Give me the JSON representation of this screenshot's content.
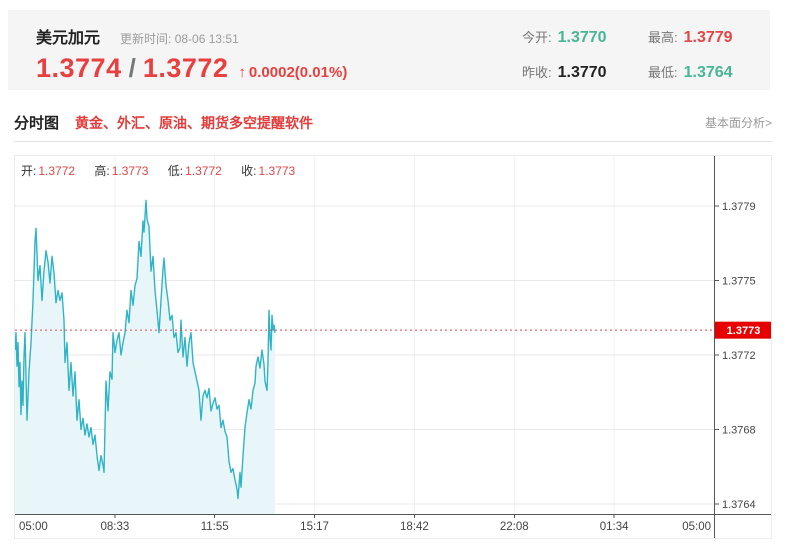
{
  "header": {
    "symbol": "美元加元",
    "update_label": "更新时间:",
    "update_time": "08-06 13:51",
    "bid": "1.3774",
    "separator": "/",
    "ask": "1.3772",
    "arrow": "↑",
    "change": "0.0002(0.01%)",
    "price_color": "#e83f3f",
    "stats": [
      {
        "label": "今开:",
        "value": "1.3770",
        "color": "#49b596"
      },
      {
        "label": "最高:",
        "value": "1.3779",
        "color": "#e24646"
      },
      {
        "label": "昨收:",
        "value": "1.3770",
        "color": "#222222"
      },
      {
        "label": "最低:",
        "value": "1.3764",
        "color": "#49b596"
      }
    ]
  },
  "tabs": {
    "active": "分时图",
    "ad_text": "黄金、外汇、原油、期货多空提醒软件",
    "link": "基本面分析>"
  },
  "chart_info": [
    {
      "label": "开:",
      "value": "1.3772"
    },
    {
      "label": "高:",
      "value": "1.3773"
    },
    {
      "label": "低:",
      "value": "1.3772"
    },
    {
      "label": "收:",
      "value": "1.3773"
    }
  ],
  "chart_data": {
    "type": "line",
    "title": "美元加元 分时图 (USD/CAD intraday)",
    "x_ticks": [
      "05:00",
      "08:33",
      "11:55",
      "15:17",
      "18:42",
      "22:08",
      "01:34",
      "05:00"
    ],
    "y_ticks": [
      1.3779,
      1.3775,
      1.3772,
      1.3768,
      1.3764
    ],
    "ylim": [
      1.3764,
      1.3779
    ],
    "grid": true,
    "legend": "none",
    "current_price": 1.3773,
    "current_price_label": "1.3773",
    "line_color": "#2fb4c7",
    "fill_color": "#e8f5f9",
    "price_line_color": "#e64545",
    "price_box_color": "#e60000",
    "series": [
      {
        "name": "price",
        "points": [
          [
            0.0,
            1.37722
          ],
          [
            0.0014,
            1.37729
          ],
          [
            0.0029,
            1.37714
          ],
          [
            0.0043,
            1.37725
          ],
          [
            0.0057,
            1.37703
          ],
          [
            0.0072,
            1.37716
          ],
          [
            0.0086,
            1.37688
          ],
          [
            0.01,
            1.37706
          ],
          [
            0.0114,
            1.37693
          ],
          [
            0.0129,
            1.37719
          ],
          [
            0.0143,
            1.37729
          ],
          [
            0.0172,
            1.37685
          ],
          [
            0.02,
            1.37711
          ],
          [
            0.0229,
            1.37725
          ],
          [
            0.0258,
            1.37742
          ],
          [
            0.0286,
            1.37771
          ],
          [
            0.03,
            1.37778
          ],
          [
            0.0329,
            1.3775
          ],
          [
            0.0358,
            1.37758
          ],
          [
            0.0386,
            1.37742
          ],
          [
            0.0415,
            1.37755
          ],
          [
            0.0443,
            1.37766
          ],
          [
            0.0472,
            1.3776
          ],
          [
            0.0501,
            1.37749
          ],
          [
            0.0529,
            1.37763
          ],
          [
            0.0558,
            1.37754
          ],
          [
            0.0587,
            1.37741
          ],
          [
            0.0615,
            1.37746
          ],
          [
            0.0644,
            1.37742
          ],
          [
            0.0672,
            1.37745
          ],
          [
            0.0701,
            1.37734
          ],
          [
            0.0715,
            1.37716
          ],
          [
            0.0744,
            1.37725
          ],
          [
            0.0773,
            1.37701
          ],
          [
            0.0801,
            1.37716
          ],
          [
            0.083,
            1.37698
          ],
          [
            0.0858,
            1.37711
          ],
          [
            0.0887,
            1.37685
          ],
          [
            0.0916,
            1.37696
          ],
          [
            0.0944,
            1.3768
          ],
          [
            0.0973,
            1.37686
          ],
          [
            0.1002,
            1.37677
          ],
          [
            0.103,
            1.37683
          ],
          [
            0.1059,
            1.37676
          ],
          [
            0.1087,
            1.37681
          ],
          [
            0.1116,
            1.37672
          ],
          [
            0.1145,
            1.37677
          ],
          [
            0.1173,
            1.37666
          ],
          [
            0.1202,
            1.37658
          ],
          [
            0.123,
            1.37666
          ],
          [
            0.1259,
            1.37661
          ],
          [
            0.1273,
            1.37657
          ],
          [
            0.1302,
            1.37706
          ],
          [
            0.133,
            1.3769
          ],
          [
            0.1359,
            1.37711
          ],
          [
            0.1388,
            1.37707
          ],
          [
            0.1402,
            1.37729
          ],
          [
            0.1431,
            1.37721
          ],
          [
            0.1459,
            1.37726
          ],
          [
            0.1488,
            1.37729
          ],
          [
            0.1516,
            1.3772
          ],
          [
            0.1545,
            1.37725
          ],
          [
            0.1574,
            1.37729
          ],
          [
            0.1602,
            1.37738
          ],
          [
            0.1631,
            1.37733
          ],
          [
            0.1659,
            1.37746
          ],
          [
            0.1688,
            1.3774
          ],
          [
            0.1717,
            1.37748
          ],
          [
            0.1745,
            1.37751
          ],
          [
            0.1774,
            1.37771
          ],
          [
            0.1802,
            1.37763
          ],
          [
            0.1831,
            1.37782
          ],
          [
            0.1846,
            1.37776
          ],
          [
            0.1874,
            1.37793
          ],
          [
            0.1888,
            1.37783
          ],
          [
            0.1917,
            1.37779
          ],
          [
            0.1946,
            1.37755
          ],
          [
            0.1974,
            1.37763
          ],
          [
            0.2003,
            1.37746
          ],
          [
            0.2031,
            1.37738
          ],
          [
            0.206,
            1.37729
          ],
          [
            0.2089,
            1.37742
          ],
          [
            0.2117,
            1.37756
          ],
          [
            0.2132,
            1.37762
          ],
          [
            0.216,
            1.37748
          ],
          [
            0.2189,
            1.37742
          ],
          [
            0.2217,
            1.37734
          ],
          [
            0.2246,
            1.37736
          ],
          [
            0.2275,
            1.37727
          ],
          [
            0.2303,
            1.37729
          ],
          [
            0.2332,
            1.37721
          ],
          [
            0.236,
            1.37723
          ],
          [
            0.2375,
            1.37734
          ],
          [
            0.2403,
            1.37719
          ],
          [
            0.2432,
            1.37727
          ],
          [
            0.2461,
            1.37714
          ],
          [
            0.2489,
            1.37725
          ],
          [
            0.2518,
            1.37729
          ],
          [
            0.2546,
            1.37716
          ],
          [
            0.2575,
            1.37711
          ],
          [
            0.2604,
            1.37706
          ],
          [
            0.2632,
            1.37701
          ],
          [
            0.2661,
            1.37685
          ],
          [
            0.2689,
            1.37698
          ],
          [
            0.2718,
            1.37701
          ],
          [
            0.2747,
            1.37697
          ],
          [
            0.2775,
            1.37702
          ],
          [
            0.2804,
            1.3769
          ],
          [
            0.2832,
            1.37694
          ],
          [
            0.2861,
            1.37697
          ],
          [
            0.289,
            1.37691
          ],
          [
            0.2918,
            1.37693
          ],
          [
            0.2947,
            1.37681
          ],
          [
            0.2975,
            1.37685
          ],
          [
            0.3004,
            1.37679
          ],
          [
            0.3033,
            1.37676
          ],
          [
            0.3061,
            1.37663
          ],
          [
            0.309,
            1.37657
          ],
          [
            0.3118,
            1.37659
          ],
          [
            0.3147,
            1.37653
          ],
          [
            0.3176,
            1.37648
          ],
          [
            0.319,
            1.37643
          ],
          [
            0.3219,
            1.37657
          ],
          [
            0.3233,
            1.37649
          ],
          [
            0.3262,
            1.37666
          ],
          [
            0.329,
            1.37681
          ],
          [
            0.3319,
            1.37689
          ],
          [
            0.3348,
            1.37696
          ],
          [
            0.3376,
            1.37691
          ],
          [
            0.3405,
            1.37701
          ],
          [
            0.3434,
            1.37705
          ],
          [
            0.3448,
            1.37714
          ],
          [
            0.3477,
            1.37719
          ],
          [
            0.3505,
            1.37713
          ],
          [
            0.3534,
            1.37722
          ],
          [
            0.3562,
            1.37715
          ],
          [
            0.3577,
            1.37706
          ],
          [
            0.3605,
            1.37701
          ],
          [
            0.362,
            1.37716
          ],
          [
            0.3634,
            1.37738
          ],
          [
            0.3648,
            1.37727
          ],
          [
            0.3662,
            1.37722
          ],
          [
            0.3677,
            1.37736
          ],
          [
            0.3691,
            1.3773
          ],
          [
            0.3705,
            1.37732
          ],
          [
            0.372,
            1.37729
          ]
        ]
      }
    ]
  }
}
